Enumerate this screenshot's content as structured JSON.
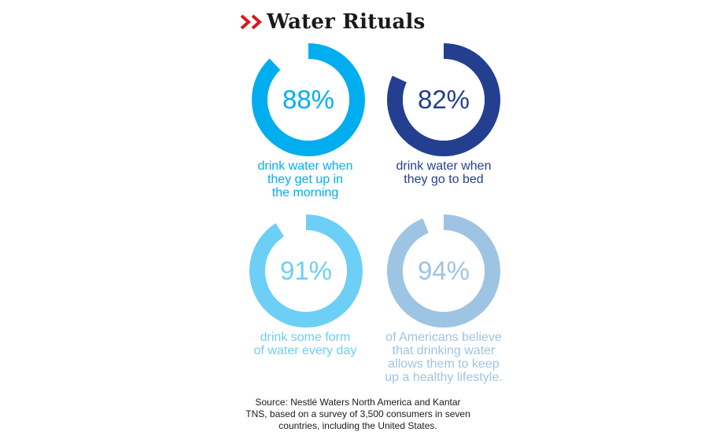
{
  "title": "Water Rituals",
  "source": "Source: Nestlé Waters North America and Kantar\nTNS, based on a survey of 3,500 consumers in seven\ncountries, including the United States.",
  "colors": {
    "title_chevron": "#d71920",
    "gap_white": "#ffffff"
  },
  "chart_data": [
    {
      "type": "pie",
      "value": 88,
      "value_label": "88%",
      "caption": "drink water when\nthey get up in\nthe morning",
      "color": "#00aeef"
    },
    {
      "type": "pie",
      "value": 82,
      "value_label": "82%",
      "caption": "drink water when\nthey go to bed",
      "color": "#243f8f"
    },
    {
      "type": "pie",
      "value": 91,
      "value_label": "91%",
      "caption": "drink some form\nof water every day",
      "color": "#6dcff6"
    },
    {
      "type": "pie",
      "value": 94,
      "value_label": "94%",
      "caption": "of Americans believe\nthat drinking water\nallows them to keep\nup a healthy lifestyle.",
      "color": "#9ec4e4"
    }
  ]
}
